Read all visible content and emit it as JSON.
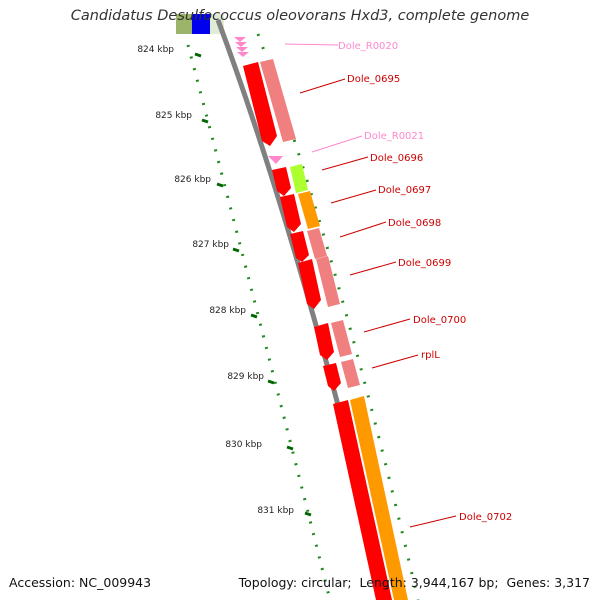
{
  "title": "Candidatus Desulfococcus oleovorans Hxd3, complete genome",
  "footer": {
    "accession_label": "Accession:",
    "accession": "NC_009943",
    "topology_label": "Topology:",
    "topology": "circular",
    "length_label": "Length:",
    "length": "3,944,167 bp",
    "genes_label": "Genes:",
    "genes": "3,317"
  },
  "colors": {
    "cds_red": "#ff0000",
    "cog_pink": "#f08080",
    "cog_orange": "#ff9900",
    "cog_green": "#adff2f",
    "rna": "#ff88cc",
    "tick_green": "#006600",
    "label_red": "#cc0000",
    "label_pink": "#ff88cc",
    "backbone": "#808080"
  },
  "ruler_ticks": [
    "824 kbp",
    "825 kbp",
    "826 kbp",
    "827 kbp",
    "828 kbp",
    "829 kbp",
    "830 kbp",
    "831 kbp"
  ],
  "gene_labels": [
    {
      "name": "Dole_R0020",
      "type": "rna"
    },
    {
      "name": "Dole_0695",
      "type": "cds"
    },
    {
      "name": "Dole_R0021",
      "type": "rna"
    },
    {
      "name": "Dole_0696",
      "type": "cds"
    },
    {
      "name": "Dole_0697",
      "type": "cds"
    },
    {
      "name": "Dole_0698",
      "type": "cds"
    },
    {
      "name": "Dole_0699",
      "type": "cds"
    },
    {
      "name": "Dole_0700",
      "type": "cds"
    },
    {
      "name": "rplL",
      "type": "cds"
    },
    {
      "name": "Dole_0702",
      "type": "cds"
    }
  ]
}
